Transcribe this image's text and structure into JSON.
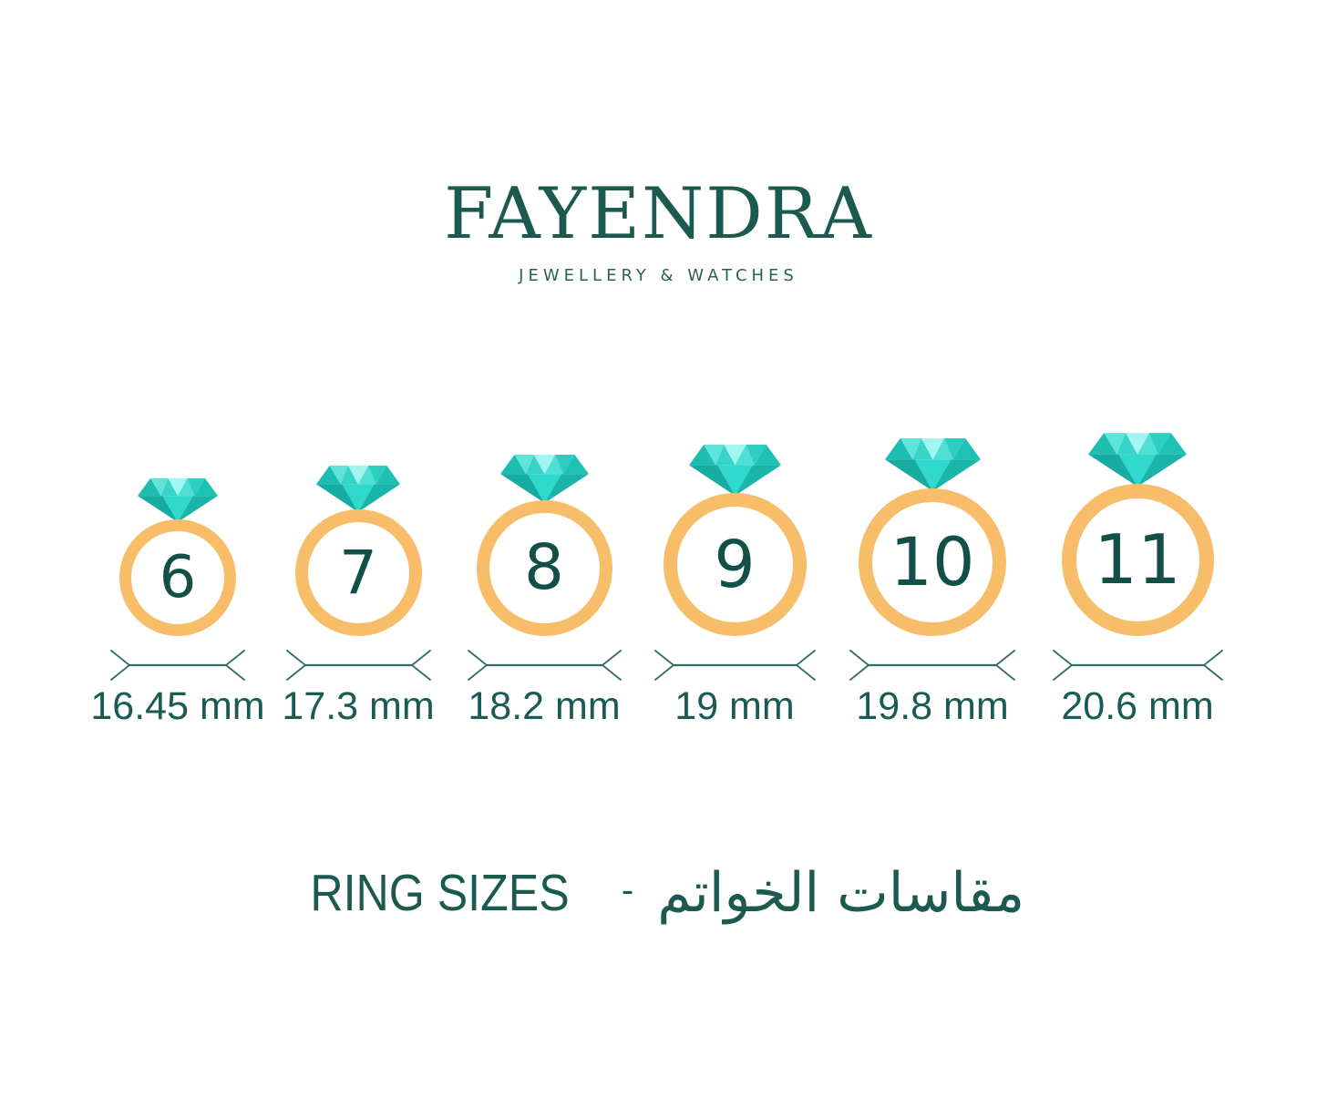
{
  "brand": {
    "name": "FAYENDRA",
    "tagline": "JEWELLERY & WATCHES"
  },
  "rings": [
    {
      "size": "6",
      "diameter": "16.45 mm"
    },
    {
      "size": "7",
      "diameter": "17.3 mm"
    },
    {
      "size": "8",
      "diameter": "18.2 mm"
    },
    {
      "size": "9",
      "diameter": "19 mm"
    },
    {
      "size": "10",
      "diameter": "19.8 mm"
    },
    {
      "size": "11",
      "diameter": "20.6 mm"
    }
  ],
  "title": {
    "en": "RING SIZES",
    "separator": "-",
    "ar": "مقاسات الخواتم"
  },
  "colors": {
    "background": "#FFFFFF",
    "brand_teal": "#1C5A50",
    "label_teal": "#1A5B54",
    "number_teal": "#134F49",
    "band_gold": "#F8BD69",
    "diamond_teal": "#2FD9CC",
    "diamond_teal_dark": "#17ACA1",
    "diamond_teal_pale": "#A2F6EF",
    "measure_line_teal": "#2E6B65"
  },
  "icons": {
    "diamond": "diamond-icon",
    "band": "ring-band",
    "measure": "measure-arrows-icon"
  }
}
